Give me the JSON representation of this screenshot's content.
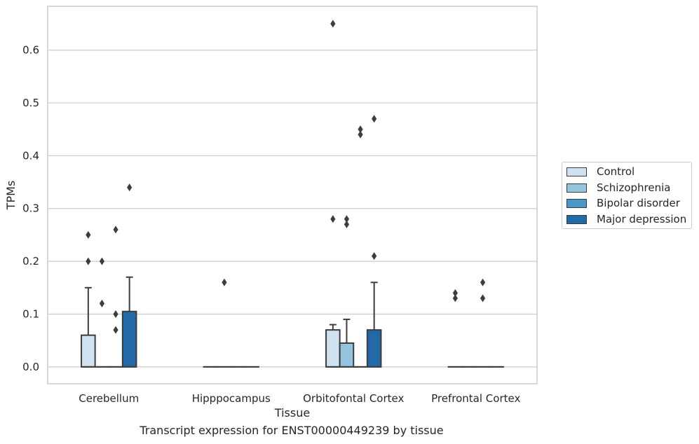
{
  "chart_data": {
    "type": "box",
    "xlabel": "Tissue",
    "ylabel": "TPMs",
    "caption": "Transcript expression for ENST00000449239 by tissue",
    "categories": [
      "Cerebellum",
      "Hipppocampus",
      "Orbitofontal Cortex",
      "Prefrontal Cortex"
    ],
    "ylim": [
      -0.032,
      0.683
    ],
    "yticks": [
      "0.0",
      "0.1",
      "0.2",
      "0.3",
      "0.4",
      "0.5",
      "0.6"
    ],
    "grid": true,
    "legend_position": "right",
    "series": [
      {
        "name": "Control",
        "color": "#d0e1f2",
        "boxes": [
          {
            "q1": 0,
            "median": 0,
            "q3": 0.06,
            "whisker_low": 0,
            "whisker_high": 0.15,
            "outliers": [
              0.25,
              0.2
            ]
          },
          {
            "q1": 0,
            "median": 0,
            "q3": 0,
            "whisker_low": 0,
            "whisker_high": 0,
            "outliers": []
          },
          {
            "q1": 0,
            "median": 0,
            "q3": 0.07,
            "whisker_low": 0,
            "whisker_high": 0.08,
            "outliers": [
              0.65,
              0.28
            ]
          },
          {
            "q1": 0,
            "median": 0,
            "q3": 0,
            "whisker_low": 0,
            "whisker_high": 0,
            "outliers": [
              0.14,
              0.13
            ]
          }
        ]
      },
      {
        "name": "Schizophrenia",
        "color": "#94c4df",
        "boxes": [
          {
            "q1": 0,
            "median": 0,
            "q3": 0,
            "whisker_low": 0,
            "whisker_high": 0,
            "outliers": [
              0.2,
              0.12
            ]
          },
          {
            "q1": 0,
            "median": 0,
            "q3": 0,
            "whisker_low": 0,
            "whisker_high": 0,
            "outliers": [
              0.16
            ]
          },
          {
            "q1": 0,
            "median": 0,
            "q3": 0.045,
            "whisker_low": 0,
            "whisker_high": 0.09,
            "outliers": [
              0.28,
              0.27
            ]
          },
          {
            "q1": 0,
            "median": 0,
            "q3": 0,
            "whisker_low": 0,
            "whisker_high": 0,
            "outliers": []
          }
        ]
      },
      {
        "name": "Bipolar disorder",
        "color": "#4a98c9",
        "boxes": [
          {
            "q1": 0,
            "median": 0,
            "q3": 0,
            "whisker_low": 0,
            "whisker_high": 0,
            "outliers": [
              0.26,
              0.1,
              0.07
            ]
          },
          {
            "q1": 0,
            "median": 0,
            "q3": 0,
            "whisker_low": 0,
            "whisker_high": 0,
            "outliers": []
          },
          {
            "q1": 0,
            "median": 0,
            "q3": 0,
            "whisker_low": 0,
            "whisker_high": 0,
            "outliers": [
              0.45,
              0.44
            ]
          },
          {
            "q1": 0,
            "median": 0,
            "q3": 0,
            "whisker_low": 0,
            "whisker_high": 0,
            "outliers": [
              0.16,
              0.13
            ]
          }
        ]
      },
      {
        "name": "Major depression",
        "color": "#2269a8",
        "boxes": [
          {
            "q1": 0,
            "median": 0,
            "q3": 0.105,
            "whisker_low": 0,
            "whisker_high": 0.17,
            "outliers": [
              0.34
            ]
          },
          {
            "q1": 0,
            "median": 0,
            "q3": 0,
            "whisker_low": 0,
            "whisker_high": 0,
            "outliers": []
          },
          {
            "q1": 0,
            "median": 0,
            "q3": 0.07,
            "whisker_low": 0,
            "whisker_high": 0.16,
            "outliers": [
              0.47,
              0.21
            ]
          },
          {
            "q1": 0,
            "median": 0,
            "q3": 0,
            "whisker_low": 0,
            "whisker_high": 0,
            "outliers": []
          }
        ]
      }
    ]
  }
}
